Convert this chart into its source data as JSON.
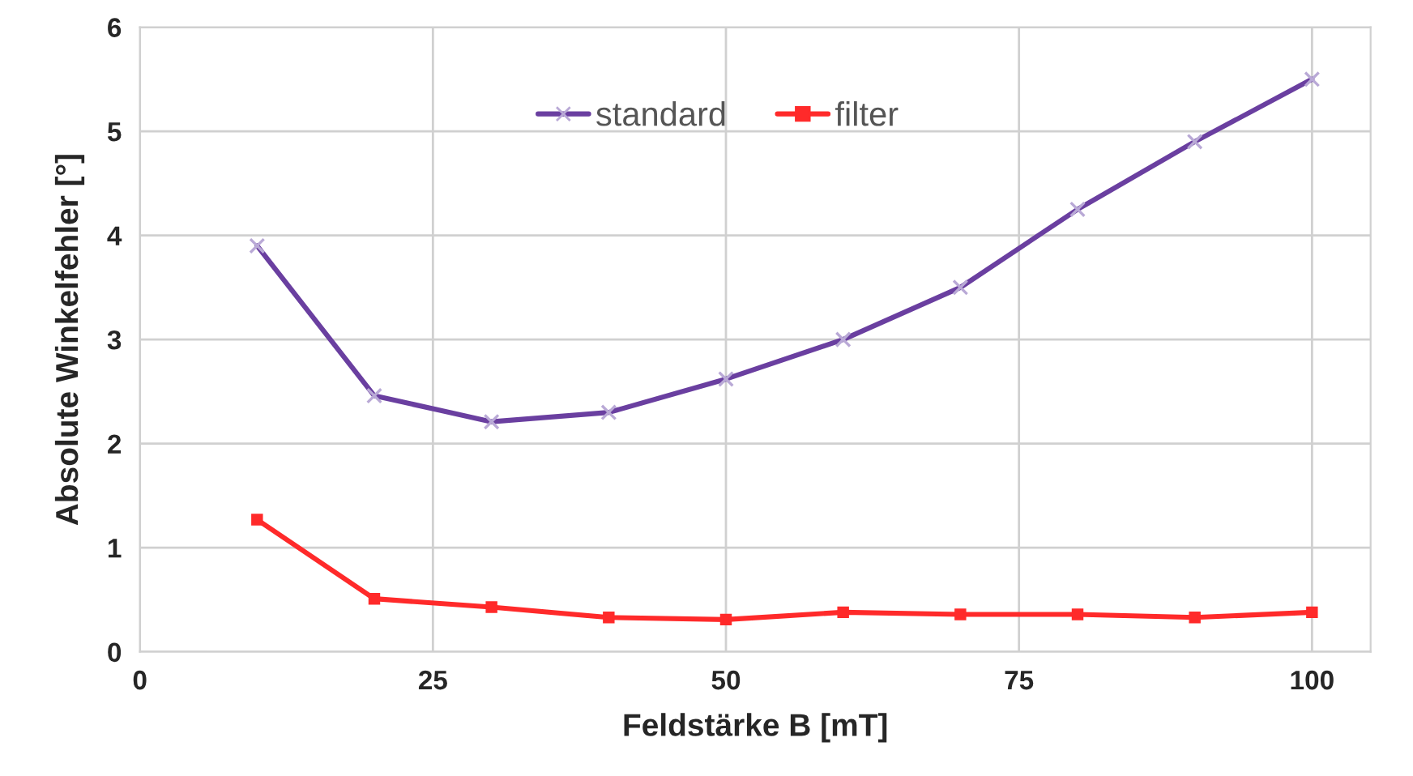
{
  "chart_data": {
    "type": "line",
    "xlabel": "Feldstärke B [mT]",
    "ylabel": "Absolute Winkelfehler [°]",
    "x": [
      10,
      20,
      30,
      40,
      50,
      60,
      70,
      80,
      90,
      100
    ],
    "series": [
      {
        "name": "standard",
        "color": "#6a3fa0",
        "marker": "cross",
        "values": [
          3.9,
          2.46,
          2.21,
          2.3,
          2.62,
          3.0,
          3.5,
          4.25,
          4.9,
          5.5
        ]
      },
      {
        "name": "filter",
        "color": "#ff2a2a",
        "marker": "square",
        "values": [
          1.27,
          0.51,
          0.43,
          0.33,
          0.31,
          0.38,
          0.36,
          0.36,
          0.33,
          0.38
        ]
      }
    ],
    "xlim": [
      0,
      105
    ],
    "xticks": [
      0,
      25,
      50,
      75,
      100
    ],
    "ylim": [
      0,
      6
    ],
    "yticks": [
      0,
      1,
      2,
      3,
      4,
      5,
      6
    ],
    "grid": true,
    "legend": "top",
    "line_style": "solid"
  }
}
